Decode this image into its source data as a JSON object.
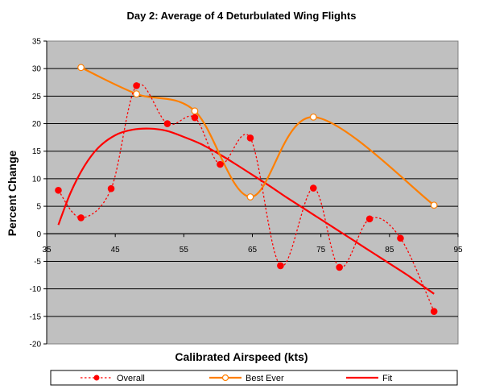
{
  "chart_data": {
    "type": "line",
    "title": "Day 2: Average of 4 Deturbulated Wing Flights",
    "xlabel": "Calibrated Airspeed (kts)",
    "ylabel": "Percent Change",
    "xlim": [
      35,
      95
    ],
    "ylim": [
      -20,
      35
    ],
    "x_ticks": [
      "35",
      "45",
      "55",
      "65",
      "75",
      "85",
      "95"
    ],
    "y_ticks": [
      "-20",
      "-15",
      "-10",
      "-5",
      "0",
      "5",
      "10",
      "15",
      "20",
      "25",
      "30",
      "35"
    ],
    "grid": "horizontal",
    "plot_background": "#c0c0c0",
    "legend_position": "bottom",
    "series": [
      {
        "name": "Overall",
        "color": "#ff0000",
        "style": "dotted",
        "marker": "filled-circle",
        "x": [
          36.7,
          40.0,
          44.4,
          48.1,
          52.6,
          56.6,
          60.3,
          64.7,
          69.1,
          73.9,
          77.7,
          82.1,
          86.6,
          91.5
        ],
        "y": [
          7.9,
          2.9,
          8.2,
          26.9,
          20.0,
          21.1,
          12.6,
          17.4,
          -5.8,
          8.3,
          -6.1,
          2.7,
          -0.8,
          -14.1
        ]
      },
      {
        "name": "Best Ever",
        "color": "#ff7f00",
        "style": "solid",
        "marker": "hollow-circle",
        "x": [
          40.0,
          48.1,
          56.6,
          64.7,
          73.9,
          91.5
        ],
        "y": [
          30.2,
          25.4,
          22.3,
          6.7,
          21.2,
          5.2
        ]
      },
      {
        "name": "Fit",
        "color": "#ff0000",
        "style": "solid",
        "marker": "none",
        "x": [
          36.7,
          38.5,
          40.5,
          42.5,
          45.0,
          47.5,
          50.0,
          52.5,
          55.0,
          57.5,
          60.0,
          62.5,
          65.0,
          67.5,
          70.0,
          72.5,
          75.0,
          77.5,
          80.0,
          82.5,
          85.0,
          87.5,
          90.0,
          91.5
        ],
        "y": [
          1.6,
          7.5,
          12.3,
          15.6,
          17.9,
          18.9,
          19.1,
          18.7,
          17.6,
          16.3,
          14.6,
          12.7,
          10.7,
          8.7,
          6.6,
          4.6,
          2.6,
          0.6,
          -1.4,
          -3.4,
          -5.4,
          -7.4,
          -9.6,
          -10.9
        ]
      }
    ]
  }
}
